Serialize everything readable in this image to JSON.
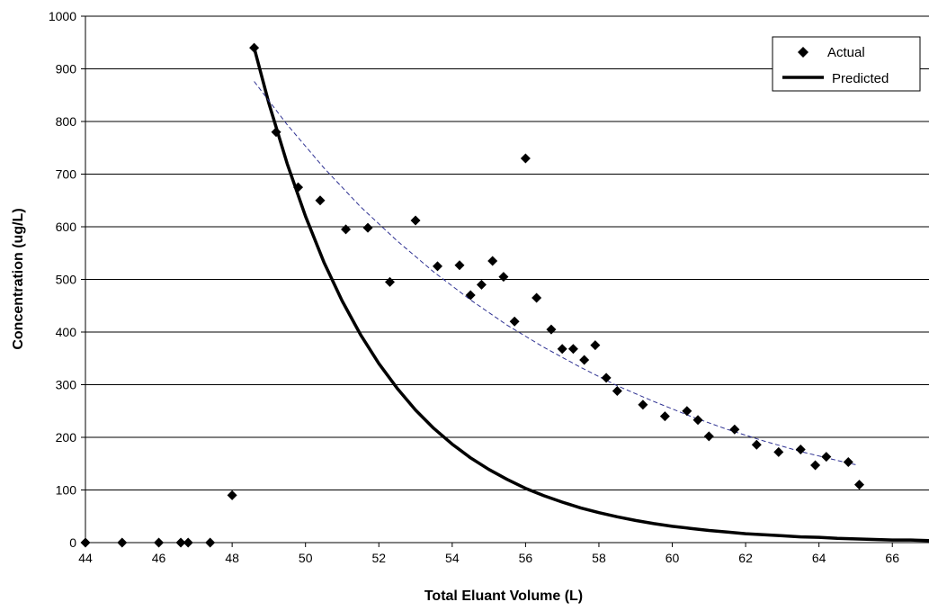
{
  "chart_data": {
    "type": "scatter",
    "xlabel": "Total Eluant Volume (L)",
    "ylabel": "Concentration (ug/L)",
    "xlim": [
      44,
      67
    ],
    "ylim": [
      0,
      1000
    ],
    "xticks": [
      "44",
      "46",
      "48",
      "50",
      "52",
      "54",
      "56",
      "58",
      "60",
      "62",
      "64",
      "66"
    ],
    "yticks": [
      "0",
      "100",
      "200",
      "300",
      "400",
      "500",
      "600",
      "700",
      "800",
      "900",
      "1000"
    ],
    "grid": "horizontal",
    "legend": "top-right",
    "legend_entries": [
      "Actual",
      "Predicted"
    ],
    "series": [
      {
        "name": "Actual",
        "style": "markers",
        "marker": "diamond",
        "color": "#000000",
        "x": [
          44.0,
          45.0,
          46.0,
          46.6,
          46.8,
          47.4,
          48.0,
          48.6,
          49.2,
          49.8,
          50.4,
          51.1,
          51.7,
          52.3,
          53.0,
          53.6,
          54.2,
          54.5,
          54.8,
          55.1,
          55.4,
          55.7,
          56.0,
          56.3,
          56.7,
          57.0,
          57.3,
          57.6,
          57.9,
          58.2,
          58.5,
          59.2,
          59.8,
          60.4,
          60.7,
          61.0,
          61.7,
          62.3,
          62.9,
          63.5,
          63.9,
          64.2,
          64.8,
          65.1
        ],
        "y": [
          0,
          0,
          0,
          0,
          0,
          0,
          90,
          940,
          780,
          675,
          650,
          595,
          598,
          495,
          612,
          525,
          527,
          470,
          490,
          535,
          505,
          420,
          730,
          465,
          405,
          368,
          368,
          347,
          375,
          313,
          288,
          262,
          240,
          250,
          233,
          202,
          215,
          186,
          172,
          177,
          147,
          163,
          153,
          110
        ]
      },
      {
        "name": "Predicted",
        "style": "line",
        "color": "#000000",
        "x": [
          48.6,
          49.0,
          49.5,
          50.0,
          50.5,
          51.0,
          51.5,
          52.0,
          52.5,
          53.0,
          53.5,
          54.0,
          54.5,
          55.0,
          55.5,
          56.0,
          56.5,
          57.0,
          57.5,
          58.0,
          58.5,
          59.0,
          59.5,
          60.0,
          60.5,
          61.0,
          61.5,
          62.0,
          62.5,
          63.0,
          63.5,
          64.0,
          64.5,
          65.0,
          65.5,
          66.0,
          66.5,
          67.0
        ],
        "y": [
          940,
          835,
          720,
          620,
          533,
          459,
          395,
          340,
          293,
          252,
          217,
          187,
          161,
          139,
          120,
          103,
          89,
          77,
          66,
          57,
          49,
          42,
          36,
          31,
          27,
          23,
          20,
          17,
          15,
          13,
          11,
          10,
          8,
          7,
          6,
          5,
          5,
          4
        ]
      },
      {
        "style": "dashed-trendline",
        "color": "#2e3192",
        "x": [
          48.6,
          49.5,
          50.5,
          51.5,
          52.5,
          53.5,
          54.5,
          55.5,
          56.5,
          57.5,
          58.5,
          59.5,
          60.5,
          61.5,
          62.5,
          63.5,
          64.5,
          65.0
        ],
        "y": [
          876,
          794,
          712,
          638,
          573,
          514,
          461,
          413,
          371,
          333,
          298,
          268,
          240,
          215,
          193,
          173,
          156,
          148
        ]
      }
    ]
  }
}
